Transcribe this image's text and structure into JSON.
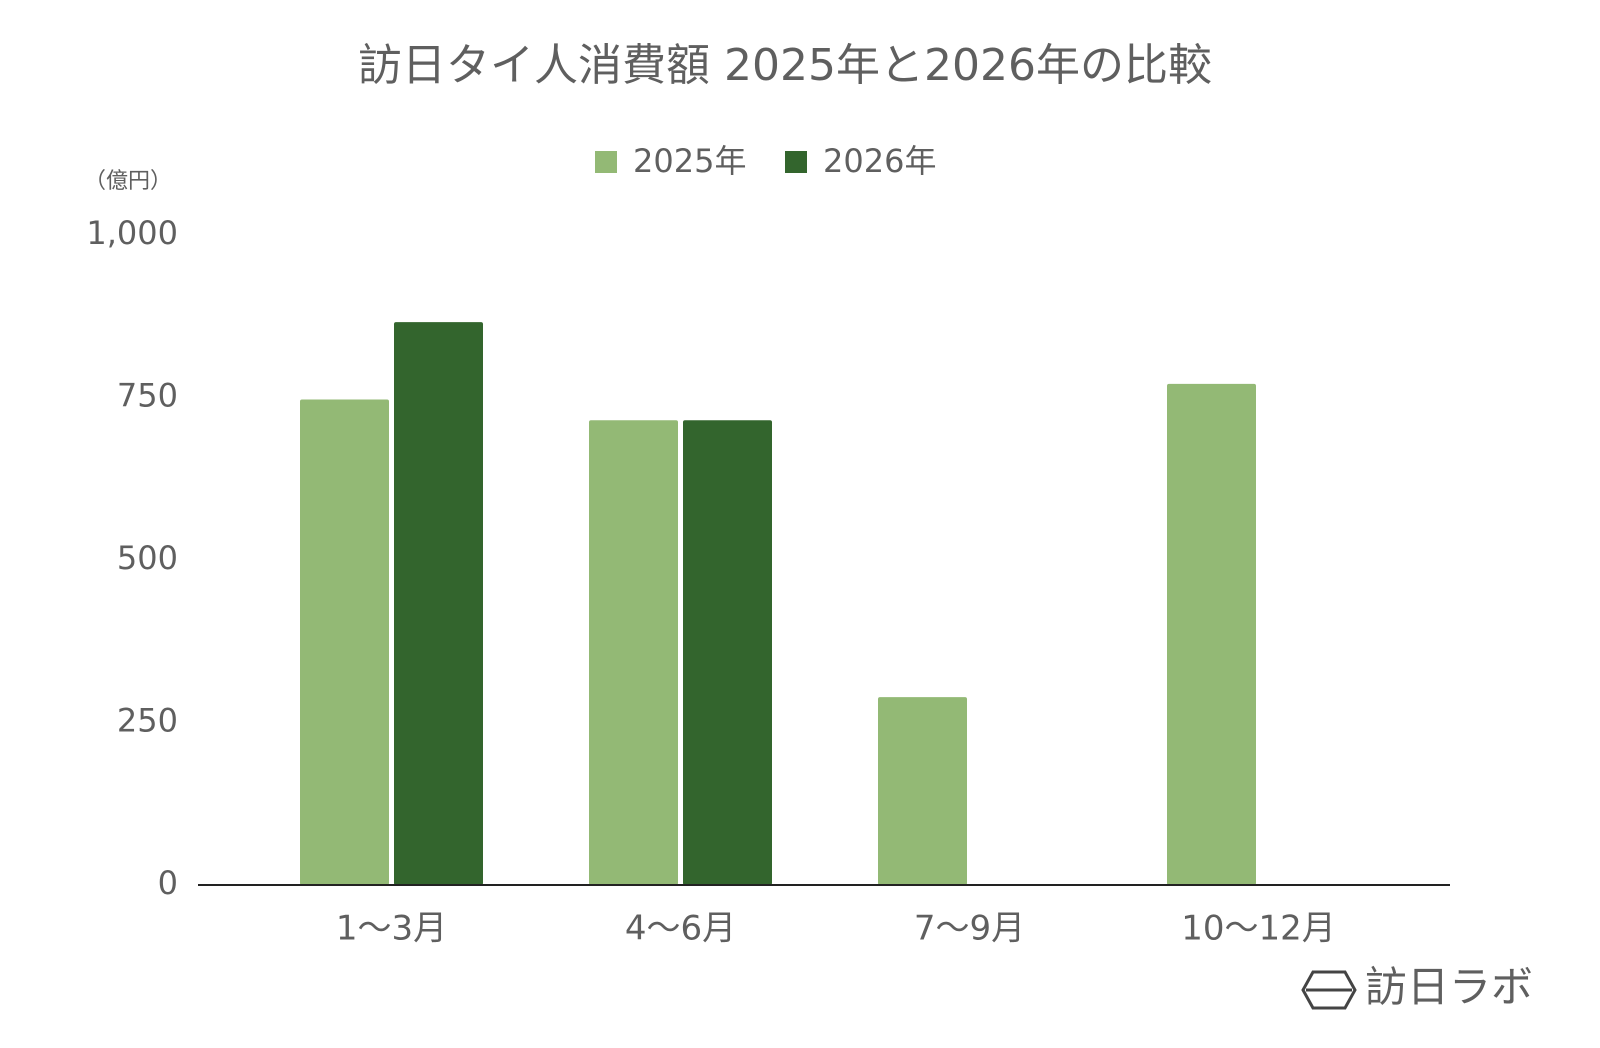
{
  "chart_data": {
    "type": "bar",
    "title": "訪日タイ人消費額 2025年と2026年の比較",
    "ylabel": "（億円）",
    "categories": [
      "1〜3月",
      "4〜6月",
      "7〜9月",
      "10〜12月"
    ],
    "series": [
      {
        "name": "2025年",
        "color": "#93b975",
        "values": [
          747,
          715,
          289,
          771
        ]
      },
      {
        "name": "2026年",
        "color": "#33652d",
        "values": [
          866,
          715,
          null,
          null
        ]
      }
    ],
    "ylim": [
      0,
      1000
    ],
    "yticks": [
      0,
      250,
      500,
      750,
      {
        "value": 1000,
        "label": "1,000"
      }
    ],
    "grid": false,
    "legend": "top",
    "watermark": "訪日ラボ"
  }
}
